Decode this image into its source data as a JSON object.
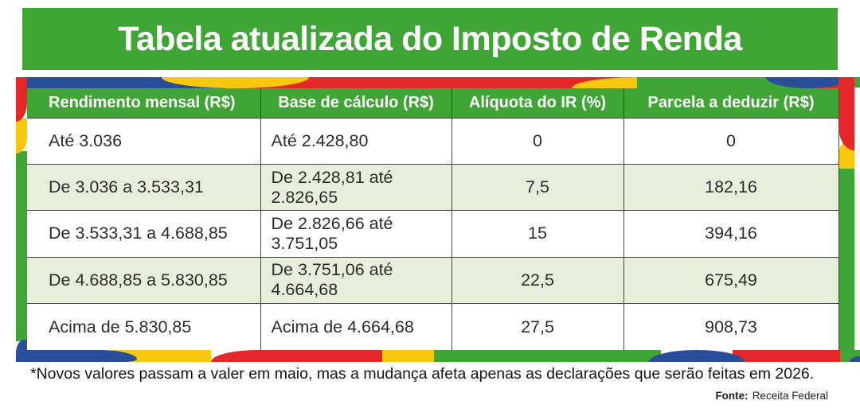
{
  "title": "Tabela atualizada do Imposto de Renda",
  "chart_data": {
    "type": "table",
    "title": "Tabela atualizada do Imposto de Renda",
    "columns": [
      "Rendimento mensal (R$)",
      "Base de cálculo (R$)",
      "Alíquota do IR (%)",
      "Parcela a deduzir (R$)"
    ],
    "rows": [
      [
        "Até 3.036",
        "Até 2.428,80",
        "0",
        "0"
      ],
      [
        "De 3.036 a 3.533,31",
        "De 2.428,81 até 2.826,65",
        "7,5",
        "182,16"
      ],
      [
        "De 3.533,31 a 4.688,85",
        "De 2.826,66 até 3.751,05",
        "15",
        "394,16"
      ],
      [
        "De 4.688,85 a 5.830,85",
        "De 3.751,06 até 4.664,68",
        "22,5",
        "675,49"
      ],
      [
        "Acima de 5.830,85",
        "Acima de 4.664,68",
        "27,5",
        "908,73"
      ]
    ],
    "footnote": "*Novos valores passam a valer em maio, mas a mudança afeta apenas as declarações que serão feitas em 2026.",
    "source_label": "Fonte:",
    "source_value": "Receita Federal"
  },
  "colors": {
    "banner_green": "#3FA535",
    "row_light_green": "#E7EFDC",
    "frame_blue": "#2B4E9B",
    "frame_yellow": "#F9C70D",
    "frame_red": "#E42829",
    "cell_text": "#2B2B2B"
  }
}
